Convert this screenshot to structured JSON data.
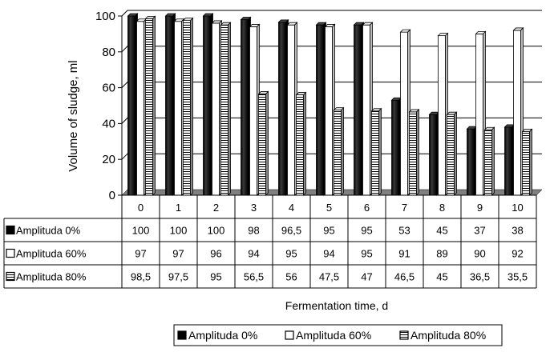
{
  "chart_data": {
    "type": "bar",
    "categories": [
      "0",
      "1",
      "2",
      "3",
      "4",
      "5",
      "6",
      "7",
      "8",
      "9",
      "10"
    ],
    "series": [
      {
        "name": "Amplituda 0%",
        "values": [
          100,
          100,
          100,
          98,
          96.5,
          95,
          95,
          53,
          45,
          37,
          38
        ],
        "labels": [
          "100",
          "100",
          "100",
          "98",
          "96,5",
          "95",
          "95",
          "53",
          "45",
          "37",
          "38"
        ],
        "fill": "solid-black"
      },
      {
        "name": "Amplituda 60%",
        "values": [
          97,
          97,
          96,
          94,
          95,
          94,
          95,
          91,
          89,
          90,
          92
        ],
        "labels": [
          "97",
          "97",
          "96",
          "94",
          "95",
          "94",
          "95",
          "91",
          "89",
          "90",
          "92"
        ],
        "fill": "white"
      },
      {
        "name": "Amplituda 80%",
        "values": [
          98.5,
          97.5,
          95,
          56.5,
          56,
          47.5,
          47,
          46.5,
          45,
          36.5,
          35.5
        ],
        "labels": [
          "98,5",
          "97,5",
          "95",
          "56,5",
          "56",
          "47,5",
          "47",
          "46,5",
          "45",
          "36,5",
          "35,5"
        ],
        "fill": "horizontal-stripes"
      }
    ],
    "ylabel": "Volume of sludge, ml",
    "xlabel": "Fermentation time, d",
    "ylim": [
      0,
      100
    ],
    "yticks": [
      "0",
      "20",
      "40",
      "60",
      "80",
      "100"
    ],
    "grid": true,
    "legend": "bottom",
    "data_table": true,
    "colors": {
      "floor": "#808080",
      "grid": "#000000",
      "bar_dark": "#111111",
      "bar_light": "#ffffff"
    }
  }
}
